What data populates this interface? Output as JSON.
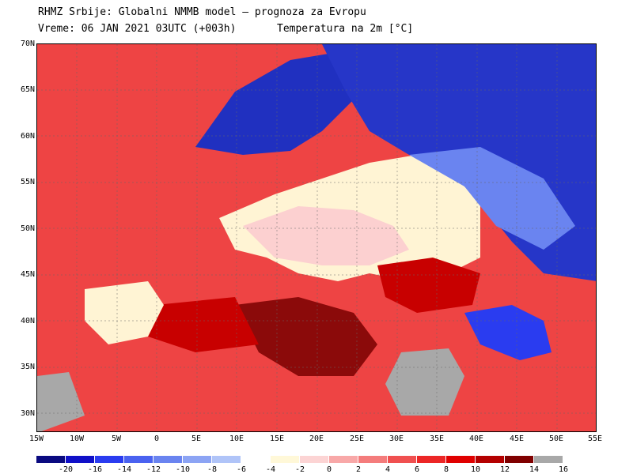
{
  "header": {
    "line1": "RHMZ Srbije: Globalni NMMB model — prognoza za Evropu",
    "line2_left": "Vreme: 06 JAN 2021 03UTC (+003h)",
    "line2_right": "Temperatura na 2m [°C]"
  },
  "map": {
    "lat_labels": [
      "70N",
      "65N",
      "60N",
      "55N",
      "50N",
      "45N",
      "40N",
      "35N",
      "30N"
    ],
    "lon_labels": [
      "15W",
      "10W",
      "5W",
      "0",
      "5E",
      "10E",
      "15E",
      "20E",
      "25E",
      "30E",
      "35E",
      "40E",
      "45E",
      "50E",
      "55E"
    ],
    "colors": {
      "sea_warm": "#e83a3a",
      "land_neutral": "#fff8d8",
      "cold": "#2636c8",
      "very_warm": "#8b0a0a",
      "missing": "#a8a8a8"
    }
  },
  "colorbar": {
    "labels": [
      "-20",
      "-16",
      "-14",
      "-12",
      "-10",
      "-8",
      "-6",
      "-4",
      "-2",
      "0",
      "2",
      "4",
      "6",
      "8",
      "10",
      "12",
      "14",
      "16"
    ],
    "colors": [
      "#0a0a80",
      "#1010c8",
      "#2a3cf0",
      "#4a62f0",
      "#6a84f0",
      "#8ca4f4",
      "#b0c4f8",
      "#ffffff",
      "#fff8d8",
      "#fcd4d4",
      "#f8a8a8",
      "#f47c7c",
      "#f05050",
      "#ec2626",
      "#e00000",
      "#b40000",
      "#800000",
      "#a8a8a8"
    ]
  }
}
